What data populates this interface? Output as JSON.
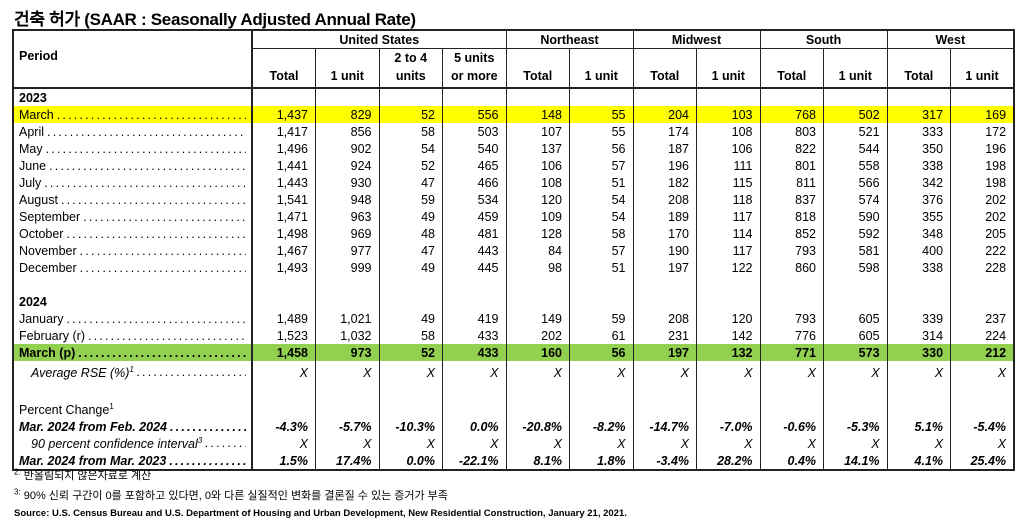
{
  "title": "건축 허가 (SAAR : Seasonally Adjusted Annual Rate)",
  "header": {
    "period": "Period",
    "groups": [
      {
        "label": "United States",
        "span": 4
      },
      {
        "label": "Northeast",
        "span": 2
      },
      {
        "label": "Midwest",
        "span": 2
      },
      {
        "label": "South",
        "span": 2
      },
      {
        "label": "West",
        "span": 2
      }
    ],
    "columns": [
      "Total",
      "1 unit",
      "2 to 4\nunits",
      "5 units\nor more",
      "Total",
      "1 unit",
      "Total",
      "1 unit",
      "Total",
      "1 unit",
      "Total",
      "1 unit"
    ]
  },
  "highlight_colors": {
    "march_2023": "#ffff00",
    "march_2024": "#92d050"
  },
  "rows": [
    {
      "label": "2023",
      "style": "bold",
      "dots": false,
      "values": []
    },
    {
      "label": "March",
      "style": "yellow",
      "dots": true,
      "values": [
        "1,437",
        "829",
        "52",
        "556",
        "148",
        "55",
        "204",
        "103",
        "768",
        "502",
        "317",
        "169"
      ]
    },
    {
      "label": "April",
      "dots": true,
      "values": [
        "1,417",
        "856",
        "58",
        "503",
        "107",
        "55",
        "174",
        "108",
        "803",
        "521",
        "333",
        "172"
      ]
    },
    {
      "label": "May",
      "dots": true,
      "values": [
        "1,496",
        "902",
        "54",
        "540",
        "137",
        "56",
        "187",
        "106",
        "822",
        "544",
        "350",
        "196"
      ]
    },
    {
      "label": "June",
      "dots": true,
      "values": [
        "1,441",
        "924",
        "52",
        "465",
        "106",
        "57",
        "196",
        "111",
        "801",
        "558",
        "338",
        "198"
      ]
    },
    {
      "label": "July",
      "dots": true,
      "values": [
        "1,443",
        "930",
        "47",
        "466",
        "108",
        "51",
        "182",
        "115",
        "811",
        "566",
        "342",
        "198"
      ]
    },
    {
      "label": "August",
      "dots": true,
      "values": [
        "1,541",
        "948",
        "59",
        "534",
        "120",
        "54",
        "208",
        "118",
        "837",
        "574",
        "376",
        "202"
      ]
    },
    {
      "label": "September",
      "dots": true,
      "values": [
        "1,471",
        "963",
        "49",
        "459",
        "109",
        "54",
        "189",
        "117",
        "818",
        "590",
        "355",
        "202"
      ]
    },
    {
      "label": "October",
      "dots": true,
      "values": [
        "1,498",
        "969",
        "48",
        "481",
        "128",
        "58",
        "170",
        "114",
        "852",
        "592",
        "348",
        "205"
      ]
    },
    {
      "label": "November",
      "dots": true,
      "values": [
        "1,467",
        "977",
        "47",
        "443",
        "84",
        "57",
        "190",
        "117",
        "793",
        "581",
        "400",
        "222"
      ]
    },
    {
      "label": "December",
      "dots": true,
      "values": [
        "1,493",
        "999",
        "49",
        "445",
        "98",
        "51",
        "197",
        "122",
        "860",
        "598",
        "338",
        "228"
      ]
    },
    {
      "label": "",
      "dots": false,
      "values": []
    },
    {
      "label": "2024",
      "style": "bold",
      "dots": false,
      "values": []
    },
    {
      "label": "January",
      "dots": true,
      "values": [
        "1,489",
        "1,021",
        "49",
        "419",
        "149",
        "59",
        "208",
        "120",
        "793",
        "605",
        "339",
        "237"
      ]
    },
    {
      "label": "February (r)",
      "dots": true,
      "values": [
        "1,523",
        "1,032",
        "58",
        "433",
        "202",
        "61",
        "231",
        "142",
        "776",
        "605",
        "314",
        "224"
      ]
    },
    {
      "label": "March (p)",
      "style": "green",
      "dots": true,
      "values": [
        "1,458",
        "973",
        "52",
        "433",
        "160",
        "56",
        "197",
        "132",
        "771",
        "573",
        "330",
        "212"
      ]
    },
    {
      "label": "Average RSE (%)",
      "sup": "1",
      "style": "ital tall",
      "indent": true,
      "dots": true,
      "values": [
        "X",
        "X",
        "X",
        "X",
        "X",
        "X",
        "X",
        "X",
        "X",
        "X",
        "X",
        "X"
      ]
    },
    {
      "label": "",
      "dots": false,
      "values": []
    },
    {
      "label": "Percent Change",
      "sup": "1",
      "dots": false,
      "values": []
    },
    {
      "label": "Mar. 2024 from Feb. 2024",
      "style": "boldital",
      "dots": true,
      "values": [
        "-4.3%",
        "-5.7%",
        "-10.3%",
        "0.0%",
        "-20.8%",
        "-8.2%",
        "-14.7%",
        "-7.0%",
        "-0.6%",
        "-5.3%",
        "5.1%",
        "-5.4%"
      ]
    },
    {
      "label": "90 percent confidence interval",
      "sup": "3",
      "style": "ital",
      "indent": true,
      "dots": true,
      "values": [
        "X",
        "X",
        "X",
        "X",
        "X",
        "X",
        "X",
        "X",
        "X",
        "X",
        "X",
        "X"
      ]
    },
    {
      "label": "Mar. 2024 from Mar. 2023",
      "style": "boldital",
      "dots": true,
      "values": [
        "1.5%",
        "17.4%",
        "0.0%",
        "-22.1%",
        "8.1%",
        "1.8%",
        "-3.4%",
        "28.2%",
        "0.4%",
        "14.1%",
        "4.1%",
        "25.4%"
      ]
    }
  ],
  "footnotes": [
    {
      "mark": "2:",
      "text": " 반올림되지 않은자료로 계산"
    },
    {
      "mark": "3:",
      "text": " 90% 신뢰 구간이 0를 포함하고 있다면, 0와 다른 실질적인 변화를 결론질 수 있는 증거가 부족"
    }
  ],
  "source": "Source: U.S. Census Bureau and U.S. Department of Housing and Urban Development, New Residential Construction, January 21, 2021."
}
